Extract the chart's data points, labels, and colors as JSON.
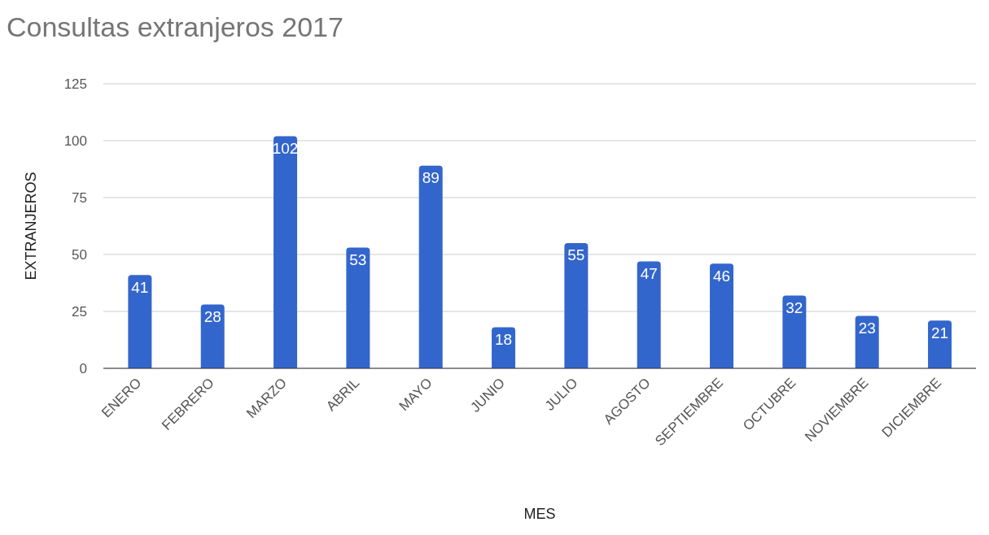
{
  "chart_data": {
    "type": "bar",
    "title": "Consultas extranjeros 2017",
    "xlabel": "MES",
    "ylabel": "EXTRANJEROS",
    "categories": [
      "ENERO",
      "FEBRERO",
      "MARZO",
      "ABRIL",
      "MAYO",
      "JUNIO",
      "JULIO",
      "AGOSTO",
      "SEPTIEMBRE",
      "OCTUBRE",
      "NOVIEMBRE",
      "DICIEMBRE"
    ],
    "values": [
      41,
      28,
      102,
      53,
      89,
      18,
      55,
      47,
      46,
      32,
      23,
      21
    ],
    "color": "#3366cc",
    "ylim": [
      0,
      125
    ],
    "yticks": [
      0,
      25,
      50,
      75,
      100,
      125
    ],
    "grid": "y",
    "data_labels": true
  }
}
